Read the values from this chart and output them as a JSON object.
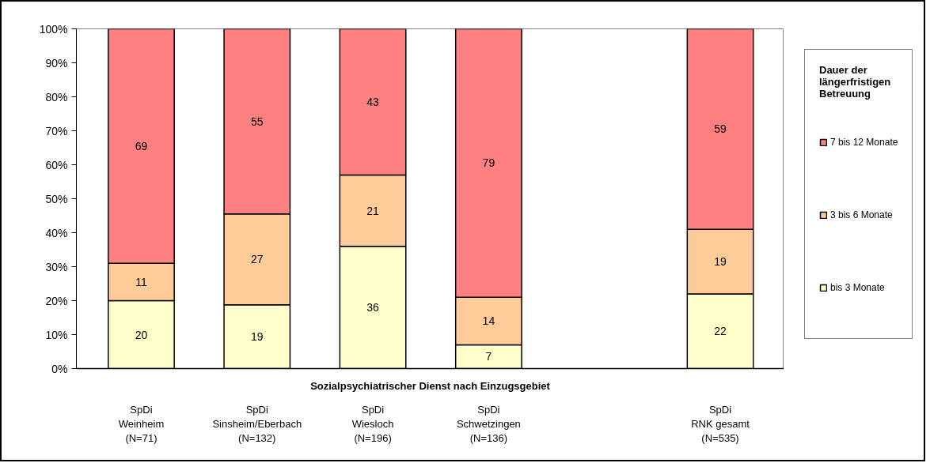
{
  "chart_data": {
    "type": "bar",
    "stacked": true,
    "categories": [
      "SpDi\nWeinheim\n(N=71)",
      "SpDi\nSinsheim/Eberbach\n(N=132)",
      "SpDi\nWiesloch\n(N=196)",
      "SpDi\nSchwetzingen\n(N=136)",
      null,
      "SpDi\nRNK gesamt\n(N=535)"
    ],
    "xlabel": "Sozialpsychiatrischer Dienst nach Einzugsgebiet",
    "legend_title": "Dauer der längerfristigen Betreuung",
    "series": [
      {
        "name": "bis 3 Monate",
        "color": "#ffffcc",
        "values": [
          20,
          18.8,
          36,
          7,
          null,
          22
        ],
        "value_labels": [
          "20",
          "19",
          "36",
          "7",
          null,
          "22"
        ]
      },
      {
        "name": "3 bis 6 Monate",
        "color": "#ffcc99",
        "values": [
          11,
          26.7,
          21,
          14,
          null,
          19
        ],
        "value_labels": [
          "11",
          "27",
          "21",
          "14",
          null,
          "19"
        ]
      },
      {
        "name": "7 bis 12 Monate",
        "color": "#ff8080",
        "values": [
          69,
          54.5,
          43,
          79,
          null,
          59
        ],
        "value_labels": [
          "69",
          "55",
          "43",
          "79",
          null,
          "59"
        ]
      }
    ],
    "ylim": [
      0,
      100
    ],
    "yticks": [
      {
        "value": 0,
        "label": "0%"
      },
      {
        "value": 10,
        "label": "10%"
      },
      {
        "value": 20,
        "label": "20%"
      },
      {
        "value": 30,
        "label": "30%"
      },
      {
        "value": 40,
        "label": "40%"
      },
      {
        "value": 50,
        "label": "50%"
      },
      {
        "value": 60,
        "label": "60%"
      },
      {
        "value": 70,
        "label": "70%"
      },
      {
        "value": 80,
        "label": "80%"
      },
      {
        "value": 90,
        "label": "90%"
      },
      {
        "value": 100,
        "label": "100%"
      }
    ],
    "legend": "right",
    "grid": false
  }
}
